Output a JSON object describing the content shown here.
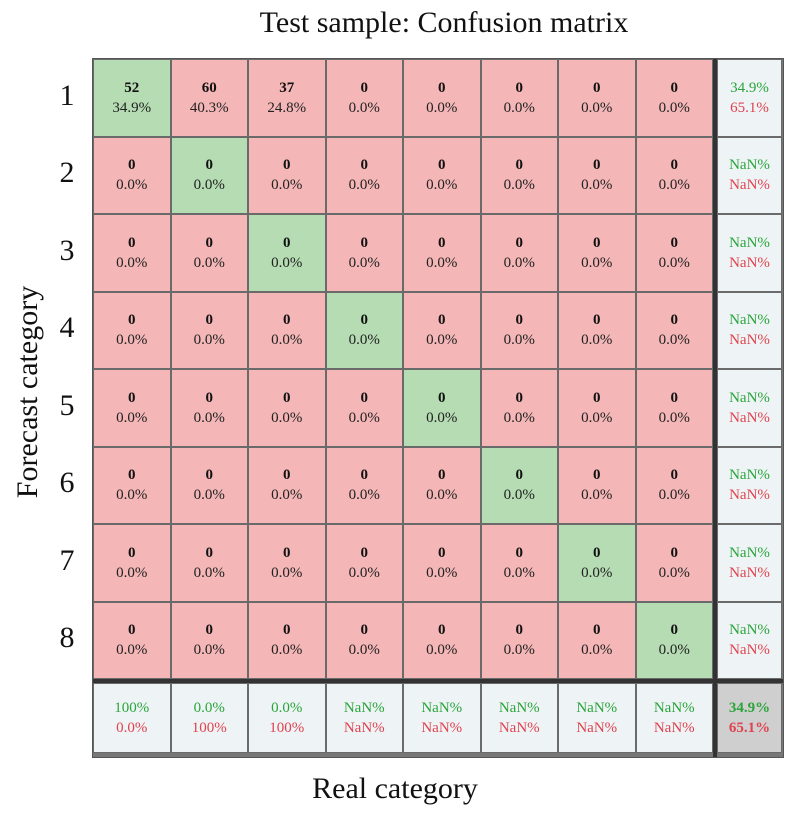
{
  "chart_data": {
    "type": "heatmap",
    "title": "Test sample: Confusion matrix",
    "xlabel": "Real category",
    "ylabel": "Forecast category",
    "row_labels": [
      "1",
      "2",
      "3",
      "4",
      "5",
      "6",
      "7",
      "8"
    ],
    "colors": {
      "correct": "#b5dcb2",
      "incorrect": "#f4b6b6",
      "summary": "#eef3f6",
      "total": "#cfcfcf",
      "good_text": "#2aa53a",
      "bad_text": "#e0434f"
    },
    "matrix": [
      [
        {
          "count": "52",
          "pct": "34.9%"
        },
        {
          "count": "60",
          "pct": "40.3%"
        },
        {
          "count": "37",
          "pct": "24.8%"
        },
        {
          "count": "0",
          "pct": "0.0%"
        },
        {
          "count": "0",
          "pct": "0.0%"
        },
        {
          "count": "0",
          "pct": "0.0%"
        },
        {
          "count": "0",
          "pct": "0.0%"
        },
        {
          "count": "0",
          "pct": "0.0%"
        }
      ],
      [
        {
          "count": "0",
          "pct": "0.0%"
        },
        {
          "count": "0",
          "pct": "0.0%"
        },
        {
          "count": "0",
          "pct": "0.0%"
        },
        {
          "count": "0",
          "pct": "0.0%"
        },
        {
          "count": "0",
          "pct": "0.0%"
        },
        {
          "count": "0",
          "pct": "0.0%"
        },
        {
          "count": "0",
          "pct": "0.0%"
        },
        {
          "count": "0",
          "pct": "0.0%"
        }
      ],
      [
        {
          "count": "0",
          "pct": "0.0%"
        },
        {
          "count": "0",
          "pct": "0.0%"
        },
        {
          "count": "0",
          "pct": "0.0%"
        },
        {
          "count": "0",
          "pct": "0.0%"
        },
        {
          "count": "0",
          "pct": "0.0%"
        },
        {
          "count": "0",
          "pct": "0.0%"
        },
        {
          "count": "0",
          "pct": "0.0%"
        },
        {
          "count": "0",
          "pct": "0.0%"
        }
      ],
      [
        {
          "count": "0",
          "pct": "0.0%"
        },
        {
          "count": "0",
          "pct": "0.0%"
        },
        {
          "count": "0",
          "pct": "0.0%"
        },
        {
          "count": "0",
          "pct": "0.0%"
        },
        {
          "count": "0",
          "pct": "0.0%"
        },
        {
          "count": "0",
          "pct": "0.0%"
        },
        {
          "count": "0",
          "pct": "0.0%"
        },
        {
          "count": "0",
          "pct": "0.0%"
        }
      ],
      [
        {
          "count": "0",
          "pct": "0.0%"
        },
        {
          "count": "0",
          "pct": "0.0%"
        },
        {
          "count": "0",
          "pct": "0.0%"
        },
        {
          "count": "0",
          "pct": "0.0%"
        },
        {
          "count": "0",
          "pct": "0.0%"
        },
        {
          "count": "0",
          "pct": "0.0%"
        },
        {
          "count": "0",
          "pct": "0.0%"
        },
        {
          "count": "0",
          "pct": "0.0%"
        }
      ],
      [
        {
          "count": "0",
          "pct": "0.0%"
        },
        {
          "count": "0",
          "pct": "0.0%"
        },
        {
          "count": "0",
          "pct": "0.0%"
        },
        {
          "count": "0",
          "pct": "0.0%"
        },
        {
          "count": "0",
          "pct": "0.0%"
        },
        {
          "count": "0",
          "pct": "0.0%"
        },
        {
          "count": "0",
          "pct": "0.0%"
        },
        {
          "count": "0",
          "pct": "0.0%"
        }
      ],
      [
        {
          "count": "0",
          "pct": "0.0%"
        },
        {
          "count": "0",
          "pct": "0.0%"
        },
        {
          "count": "0",
          "pct": "0.0%"
        },
        {
          "count": "0",
          "pct": "0.0%"
        },
        {
          "count": "0",
          "pct": "0.0%"
        },
        {
          "count": "0",
          "pct": "0.0%"
        },
        {
          "count": "0",
          "pct": "0.0%"
        },
        {
          "count": "0",
          "pct": "0.0%"
        }
      ],
      [
        {
          "count": "0",
          "pct": "0.0%"
        },
        {
          "count": "0",
          "pct": "0.0%"
        },
        {
          "count": "0",
          "pct": "0.0%"
        },
        {
          "count": "0",
          "pct": "0.0%"
        },
        {
          "count": "0",
          "pct": "0.0%"
        },
        {
          "count": "0",
          "pct": "0.0%"
        },
        {
          "count": "0",
          "pct": "0.0%"
        },
        {
          "count": "0",
          "pct": "0.0%"
        }
      ]
    ],
    "row_summary": [
      {
        "correct": "34.9%",
        "incorrect": "65.1%"
      },
      {
        "correct": "NaN%",
        "incorrect": "NaN%"
      },
      {
        "correct": "NaN%",
        "incorrect": "NaN%"
      },
      {
        "correct": "NaN%",
        "incorrect": "NaN%"
      },
      {
        "correct": "NaN%",
        "incorrect": "NaN%"
      },
      {
        "correct": "NaN%",
        "incorrect": "NaN%"
      },
      {
        "correct": "NaN%",
        "incorrect": "NaN%"
      },
      {
        "correct": "NaN%",
        "incorrect": "NaN%"
      }
    ],
    "col_summary": [
      {
        "correct": "100%",
        "incorrect": "0.0%"
      },
      {
        "correct": "0.0%",
        "incorrect": "100%"
      },
      {
        "correct": "0.0%",
        "incorrect": "100%"
      },
      {
        "correct": "NaN%",
        "incorrect": "NaN%"
      },
      {
        "correct": "NaN%",
        "incorrect": "NaN%"
      },
      {
        "correct": "NaN%",
        "incorrect": "NaN%"
      },
      {
        "correct": "NaN%",
        "incorrect": "NaN%"
      },
      {
        "correct": "NaN%",
        "incorrect": "NaN%"
      }
    ],
    "overall": {
      "correct": "34.9%",
      "incorrect": "65.1%"
    }
  }
}
